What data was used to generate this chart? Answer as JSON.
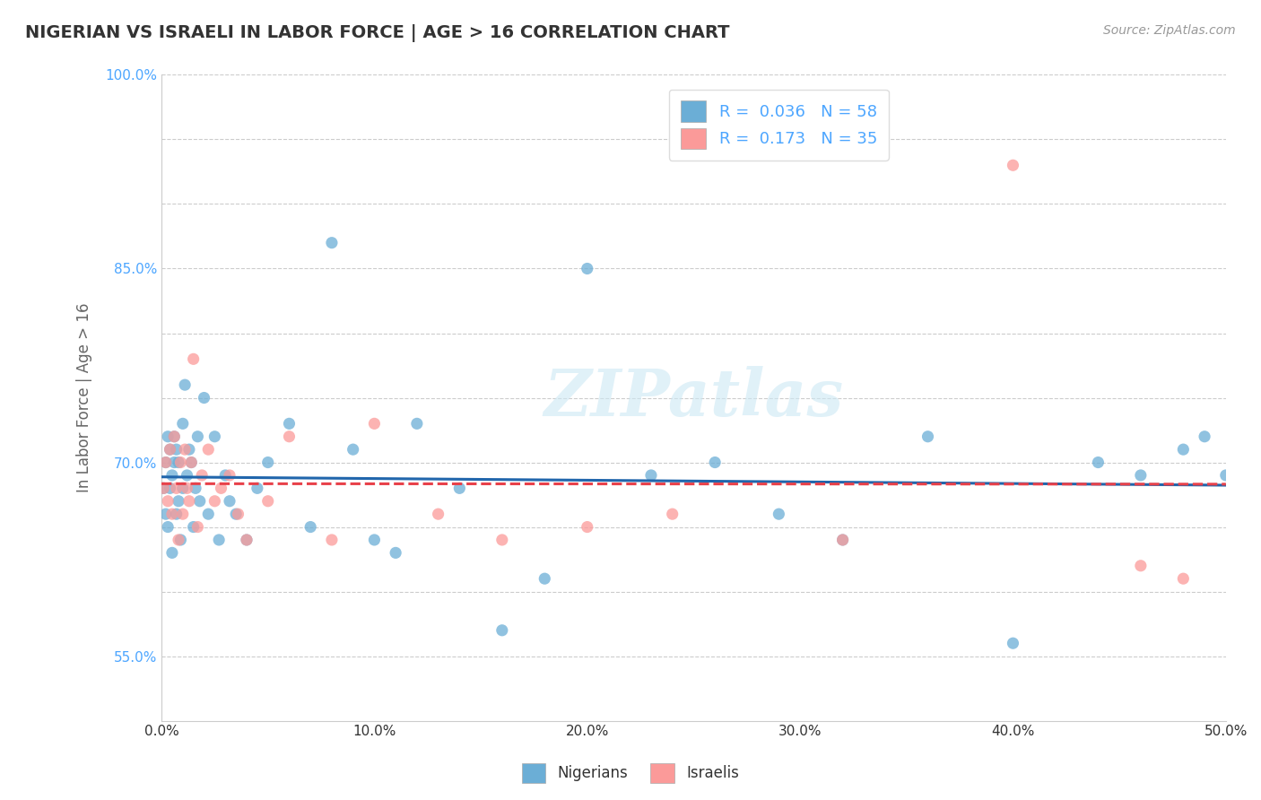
{
  "title": "NIGERIAN VS ISRAELI IN LABOR FORCE | AGE > 16 CORRELATION CHART",
  "source": "Source: ZipAtlas.com",
  "ylabel": "In Labor Force | Age > 16",
  "xmin": 0.0,
  "xmax": 0.5,
  "ymin": 0.5,
  "ymax": 1.0,
  "yticks": [
    0.55,
    0.6,
    0.65,
    0.7,
    0.75,
    0.8,
    0.85,
    0.9,
    0.95,
    1.0
  ],
  "ytick_labels": [
    "55.0%",
    "",
    "",
    "70.0%",
    "",
    "",
    "85.0%",
    "",
    "",
    "100.0%"
  ],
  "xticks": [
    0.0,
    0.1,
    0.2,
    0.3,
    0.4,
    0.5
  ],
  "xtick_labels": [
    "0.0%",
    "10.0%",
    "20.0%",
    "30.0%",
    "40.0%",
    "50.0%"
  ],
  "nigerian_color": "#6baed6",
  "israeli_color": "#fb9a99",
  "nigerian_R": 0.036,
  "nigerian_N": 58,
  "israeli_R": 0.173,
  "israeli_N": 35,
  "nigerian_line_color": "#2166ac",
  "israeli_line_color": "#e8414a",
  "nigerian_x": [
    0.001,
    0.002,
    0.002,
    0.003,
    0.003,
    0.004,
    0.004,
    0.005,
    0.005,
    0.006,
    0.006,
    0.007,
    0.007,
    0.008,
    0.008,
    0.009,
    0.01,
    0.01,
    0.011,
    0.012,
    0.013,
    0.014,
    0.015,
    0.016,
    0.017,
    0.018,
    0.02,
    0.022,
    0.025,
    0.027,
    0.03,
    0.032,
    0.035,
    0.04,
    0.045,
    0.05,
    0.06,
    0.07,
    0.08,
    0.09,
    0.1,
    0.11,
    0.12,
    0.14,
    0.16,
    0.18,
    0.2,
    0.23,
    0.26,
    0.29,
    0.32,
    0.36,
    0.4,
    0.44,
    0.46,
    0.48,
    0.49,
    0.5
  ],
  "nigerian_y": [
    0.68,
    0.66,
    0.7,
    0.72,
    0.65,
    0.68,
    0.71,
    0.63,
    0.69,
    0.7,
    0.72,
    0.71,
    0.66,
    0.7,
    0.67,
    0.64,
    0.73,
    0.68,
    0.76,
    0.69,
    0.71,
    0.7,
    0.65,
    0.68,
    0.72,
    0.67,
    0.75,
    0.66,
    0.72,
    0.64,
    0.69,
    0.67,
    0.66,
    0.64,
    0.68,
    0.7,
    0.73,
    0.65,
    0.87,
    0.71,
    0.64,
    0.63,
    0.73,
    0.68,
    0.57,
    0.61,
    0.85,
    0.69,
    0.7,
    0.66,
    0.64,
    0.72,
    0.56,
    0.7,
    0.69,
    0.71,
    0.72,
    0.69
  ],
  "israeli_x": [
    0.001,
    0.002,
    0.003,
    0.004,
    0.005,
    0.006,
    0.007,
    0.008,
    0.009,
    0.01,
    0.011,
    0.012,
    0.013,
    0.014,
    0.015,
    0.017,
    0.019,
    0.022,
    0.025,
    0.028,
    0.032,
    0.036,
    0.04,
    0.05,
    0.06,
    0.08,
    0.1,
    0.13,
    0.16,
    0.2,
    0.24,
    0.32,
    0.4,
    0.46,
    0.48
  ],
  "israeli_y": [
    0.68,
    0.7,
    0.67,
    0.71,
    0.66,
    0.72,
    0.68,
    0.64,
    0.7,
    0.66,
    0.71,
    0.68,
    0.67,
    0.7,
    0.78,
    0.65,
    0.69,
    0.71,
    0.67,
    0.68,
    0.69,
    0.66,
    0.64,
    0.67,
    0.72,
    0.64,
    0.73,
    0.66,
    0.64,
    0.65,
    0.66,
    0.64,
    0.93,
    0.62,
    0.61
  ],
  "watermark": "ZIPatlas",
  "background_color": "#ffffff",
  "grid_color": "#cccccc"
}
